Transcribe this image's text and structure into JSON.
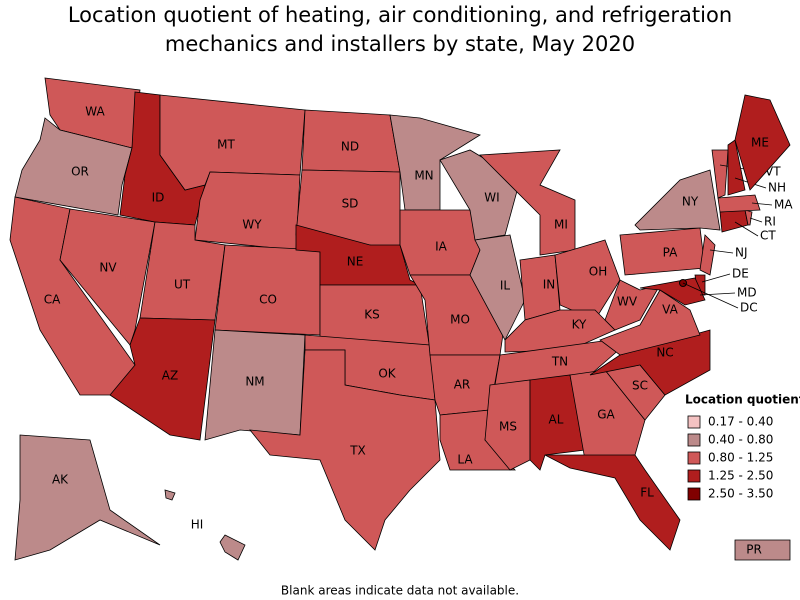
{
  "title": "Location quotient of heating, air conditioning, and refrigeration",
  "title_line2": "mechanics and installers by state, May 2020",
  "states": [
    {
      "label": "WA",
      "bin": 2
    },
    {
      "label": "OR",
      "bin": 1
    },
    {
      "label": "CA",
      "bin": 2
    },
    {
      "label": "NV",
      "bin": 2
    },
    {
      "label": "ID",
      "bin": 3
    },
    {
      "label": "MT",
      "bin": 2
    },
    {
      "label": "WY",
      "bin": 2
    },
    {
      "label": "UT",
      "bin": 2
    },
    {
      "label": "AZ",
      "bin": 3
    },
    {
      "label": "CO",
      "bin": 2
    },
    {
      "label": "NM",
      "bin": 1
    },
    {
      "label": "ND",
      "bin": 2
    },
    {
      "label": "SD",
      "bin": 2
    },
    {
      "label": "NE",
      "bin": 3
    },
    {
      "label": "KS",
      "bin": 2
    },
    {
      "label": "OK",
      "bin": 2
    },
    {
      "label": "TX",
      "bin": 2
    },
    {
      "label": "MN",
      "bin": 1
    },
    {
      "label": "IA",
      "bin": 2
    },
    {
      "label": "MO",
      "bin": 2
    },
    {
      "label": "AR",
      "bin": 2
    },
    {
      "label": "LA",
      "bin": 2
    },
    {
      "label": "WI",
      "bin": 1
    },
    {
      "label": "IL",
      "bin": 1
    },
    {
      "label": "MI",
      "bin": 2
    },
    {
      "label": "IN",
      "bin": 2
    },
    {
      "label": "OH",
      "bin": 2
    },
    {
      "label": "KY",
      "bin": 2
    },
    {
      "label": "TN",
      "bin": 2
    },
    {
      "label": "MS",
      "bin": 2
    },
    {
      "label": "AL",
      "bin": 3
    },
    {
      "label": "GA",
      "bin": 2
    },
    {
      "label": "FL",
      "bin": 3
    },
    {
      "label": "SC",
      "bin": 2
    },
    {
      "label": "NC",
      "bin": 3
    },
    {
      "label": "VA",
      "bin": 2
    },
    {
      "label": "WV",
      "bin": 2
    },
    {
      "label": "PA",
      "bin": 2
    },
    {
      "label": "NY",
      "bin": 1
    },
    {
      "label": "NJ",
      "bin": 2
    },
    {
      "label": "DE",
      "bin": 3
    },
    {
      "label": "MD",
      "bin": 3
    },
    {
      "label": "DC",
      "bin": 4
    },
    {
      "label": "CT",
      "bin": 3
    },
    {
      "label": "RI",
      "bin": 2
    },
    {
      "label": "MA",
      "bin": 2
    },
    {
      "label": "VT",
      "bin": 2
    },
    {
      "label": "NH",
      "bin": 3
    },
    {
      "label": "ME",
      "bin": 3
    },
    {
      "label": "AK",
      "bin": 1
    },
    {
      "label": "HI",
      "bin": 1
    },
    {
      "label": "PR",
      "bin": 1
    }
  ],
  "legend": {
    "title": "Location quotient",
    "items": [
      {
        "label": "0.17 - 0.40",
        "color": "#f4c2c2"
      },
      {
        "label": "0.40 - 0.80",
        "color": "#bc8a8a"
      },
      {
        "label": "0.80 - 1.25",
        "color": "#cf5858"
      },
      {
        "label": "1.25 - 2.50",
        "color": "#b01e1e"
      },
      {
        "label": "2.50 - 3.50",
        "color": "#800000"
      }
    ]
  },
  "footnote": "Blank areas indicate data not available."
}
